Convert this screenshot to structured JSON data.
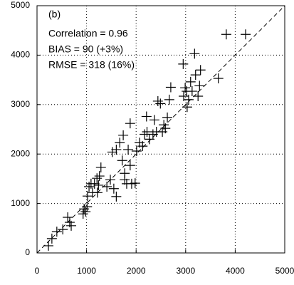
{
  "chart_data": {
    "type": "scatter",
    "annotations": [
      "(b)",
      "Correlation = 0.96",
      "BIAS = 90 (+3%)",
      "RMSE = 318 (16%)"
    ],
    "x": [
      230,
      300,
      400,
      520,
      620,
      660,
      690,
      930,
      950,
      980,
      1010,
      1020,
      1050,
      1090,
      1120,
      1160,
      1210,
      1220,
      1260,
      1240,
      1290,
      1410,
      1480,
      1550,
      1600,
      1520,
      1600,
      1670,
      1720,
      1740,
      1770,
      1770,
      1810,
      1840,
      1880,
      1880,
      1910,
      1980,
      2010,
      2070,
      2130,
      2170,
      2210,
      2220,
      2270,
      2340,
      2370,
      2410,
      2440,
      2490,
      2530,
      2560,
      2590,
      2630,
      2670,
      2700,
      2960,
      2990,
      3020,
      3030,
      3060,
      3100,
      3130,
      3180,
      3200,
      3250,
      3280,
      3300,
      3660,
      2950,
      3820,
      4210
    ],
    "values": [
      145,
      290,
      430,
      475,
      720,
      620,
      550,
      790,
      890,
      835,
      935,
      1150,
      1340,
      1400,
      1220,
      1400,
      1510,
      1220,
      1555,
      1370,
      1730,
      1340,
      1480,
      1300,
      1140,
      2040,
      2090,
      2230,
      1870,
      2380,
      1610,
      1480,
      1400,
      2090,
      1770,
      2620,
      1400,
      1410,
      2060,
      2230,
      2160,
      2400,
      2760,
      2450,
      2300,
      2400,
      2690,
      2450,
      3070,
      3020,
      2450,
      2590,
      2520,
      2740,
      3100,
      3350,
      3170,
      3340,
      3270,
      2950,
      3100,
      3460,
      3270,
      4030,
      3600,
      3170,
      3380,
      3700,
      3530,
      3820,
      4420,
      4420
    ],
    "color": "#000000",
    "xlim": [
      0,
      5000
    ],
    "ylim": [
      0,
      5000
    ],
    "xticks": [
      0,
      1000,
      2000,
      3000,
      4000,
      5000
    ],
    "yticks": [
      0,
      1000,
      2000,
      3000,
      4000,
      5000
    ],
    "grid": true
  }
}
